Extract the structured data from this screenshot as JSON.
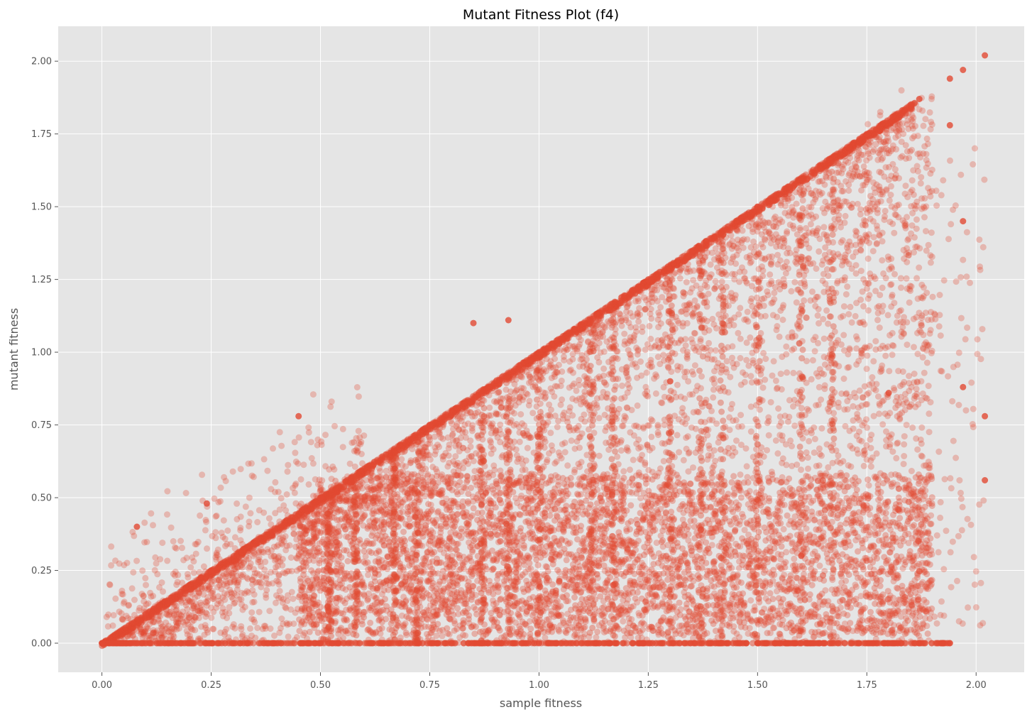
{
  "chart_data": {
    "type": "scatter",
    "title": "Mutant Fitness Plot (f4)",
    "xlabel": "sample fitness",
    "ylabel": "mutant fitness",
    "xlim": [
      -0.1,
      2.11
    ],
    "ylim": [
      -0.1,
      2.12
    ],
    "x_ticks": [
      "0.00",
      "0.25",
      "0.50",
      "0.75",
      "1.00",
      "1.25",
      "1.50",
      "1.75",
      "2.00"
    ],
    "y_ticks": [
      "0.00",
      "0.25",
      "0.50",
      "0.75",
      "1.00",
      "1.25",
      "1.50",
      "1.75",
      "2.00"
    ],
    "grid": true,
    "legend": "none",
    "colors": {
      "point": "#e24a33",
      "plot_background": "#e5e5e5",
      "grid": "#ffffff"
    },
    "series": [
      {
        "description_points": [
          [
            0.0,
            0.0
          ],
          [
            0.1,
            0.1
          ],
          [
            0.25,
            0.25
          ],
          [
            0.5,
            0.5
          ],
          [
            0.75,
            0.75
          ],
          [
            1.0,
            1.0
          ],
          [
            1.25,
            1.25
          ],
          [
            1.5,
            1.5
          ],
          [
            1.75,
            1.75
          ],
          [
            1.85,
            1.85
          ],
          [
            1.87,
            1.87
          ],
          [
            1.94,
            1.94
          ],
          [
            1.97,
            1.97
          ],
          [
            2.02,
            2.02
          ],
          [
            0.24,
            0.48
          ],
          [
            0.45,
            0.78
          ],
          [
            0.93,
            1.11
          ],
          [
            0.85,
            1.1
          ],
          [
            0.08,
            0.4
          ],
          [
            0.5,
            0.0
          ],
          [
            1.0,
            0.0
          ],
          [
            1.5,
            0.0
          ],
          [
            1.87,
            0.0
          ],
          [
            1.94,
            0.0
          ],
          [
            0.67,
            0.6
          ],
          [
            1.17,
            0.2
          ],
          [
            1.3,
            0.9
          ],
          [
            1.6,
            0.3
          ],
          [
            1.97,
            0.88
          ],
          [
            2.02,
            0.78
          ],
          [
            1.97,
            1.45
          ],
          [
            1.94,
            1.78
          ],
          [
            2.02,
            0.56
          ],
          [
            1.8,
            0.86
          ]
        ]
      }
    ]
  }
}
